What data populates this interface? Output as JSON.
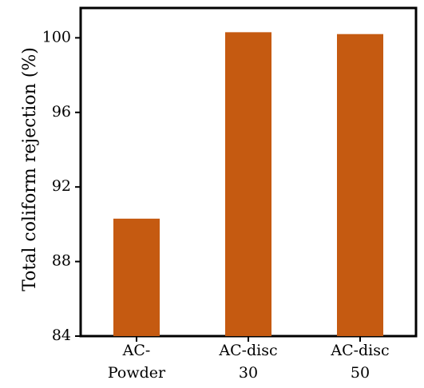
{
  "chart_data": {
    "type": "bar",
    "title": "",
    "xlabel": "",
    "ylabel": "Total coliform rejection (%)",
    "categories": [
      [
        "AC-",
        "Powder"
      ],
      [
        "AC-disc",
        "30"
      ],
      [
        "AC-disc",
        "50"
      ]
    ],
    "values": [
      90.3,
      100.3,
      100.2
    ],
    "ylim": [
      84,
      101.6
    ],
    "yticks": [
      "84",
      "88",
      "92",
      "96",
      "100"
    ],
    "ytick_values": [
      84,
      88,
      92,
      96,
      100
    ],
    "bar_color": "#C55A11",
    "grid": false,
    "legend": "none"
  }
}
